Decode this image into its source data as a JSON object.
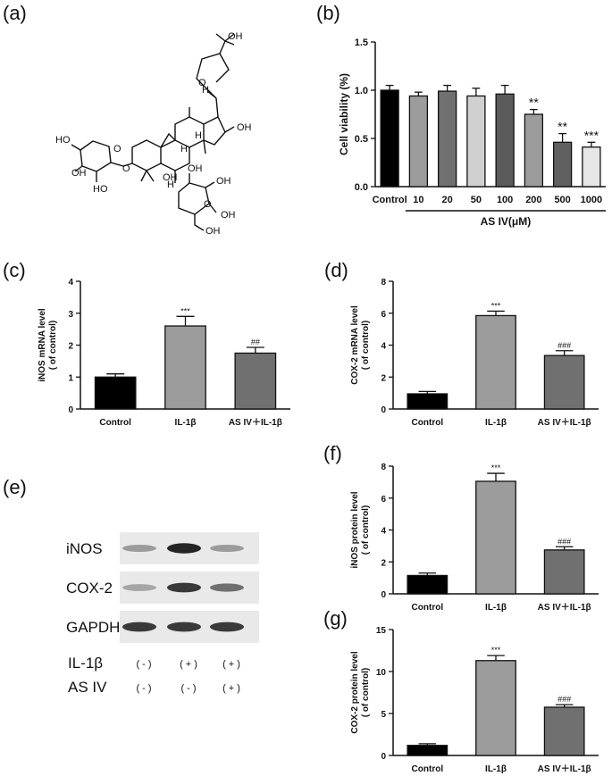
{
  "panel_labels": {
    "a": "(a)",
    "b": "(b)",
    "c": "(c)",
    "d": "(d)",
    "e": "(e)",
    "f": "(f)",
    "g": "(g)"
  },
  "structure": {
    "labels": [
      "OH",
      "H",
      "OH",
      "H",
      "H",
      "OH",
      "HO",
      "O",
      "OH",
      "HO",
      "O",
      "O",
      "OH",
      "H",
      "OH",
      "OH",
      "O",
      "OH"
    ]
  },
  "blot": {
    "proteins": [
      "iNOS",
      "COX-2",
      "GAPDH"
    ],
    "treatments": [
      {
        "name": "IL-1β",
        "states": [
          "( - )",
          "( + )",
          "( + )"
        ]
      },
      {
        "name": "AS IV",
        "states": [
          "( - )",
          "( - )",
          "( + )"
        ]
      }
    ],
    "band_intensity": {
      "iNOS": [
        0.35,
        0.9,
        0.35
      ],
      "COX-2": [
        0.3,
        0.8,
        0.55
      ],
      "GAPDH": [
        0.8,
        0.8,
        0.8
      ]
    }
  },
  "chart_data": [
    {
      "panel": "b",
      "type": "bar",
      "categories": [
        "Control",
        "10",
        "20",
        "50",
        "100",
        "200",
        "500",
        "1000"
      ],
      "values": [
        1.0,
        0.94,
        0.99,
        0.94,
        0.96,
        0.75,
        0.46,
        0.41
      ],
      "errors": [
        0.05,
        0.04,
        0.06,
        0.08,
        0.09,
        0.05,
        0.09,
        0.05
      ],
      "annotations": [
        "",
        "",
        "",
        "",
        "",
        "**",
        "**",
        "***"
      ],
      "colors": [
        "#000000",
        "#9c9c9c",
        "#707070",
        "#d0d0d0",
        "#5a5a5a",
        "#9c9c9c",
        "#606060",
        "#e6e6e6"
      ],
      "ylabel": "Cell viability (%)",
      "xlabel": "AS IV(μM)",
      "ylim": [
        0,
        1.5
      ],
      "yticks": [
        "0.0",
        "0.5",
        "1.0",
        "1.5"
      ]
    },
    {
      "panel": "c",
      "type": "bar",
      "categories": [
        "Control",
        "IL-1β",
        "AS IV＋IL-1β"
      ],
      "values": [
        1.0,
        2.6,
        1.75
      ],
      "errors": [
        0.1,
        0.3,
        0.18
      ],
      "annotations": [
        "",
        "***",
        "##"
      ],
      "colors": [
        "#000000",
        "#9c9c9c",
        "#707070"
      ],
      "ylabel": "iNOS mRNA level",
      "ylabel2": "( of control)",
      "ylim": [
        0,
        4
      ],
      "yticks": [
        "0",
        "1",
        "2",
        "3",
        "4"
      ]
    },
    {
      "panel": "d",
      "type": "bar",
      "categories": [
        "Control",
        "IL-1β",
        "AS IV＋IL-1β"
      ],
      "values": [
        0.95,
        5.85,
        3.35
      ],
      "errors": [
        0.15,
        0.28,
        0.3
      ],
      "annotations": [
        "",
        "***",
        "###"
      ],
      "colors": [
        "#000000",
        "#9c9c9c",
        "#707070"
      ],
      "ylabel": "COX-2 mRNA level",
      "ylabel2": "( of control)",
      "ylim": [
        0,
        8
      ],
      "yticks": [
        "0",
        "2",
        "4",
        "6",
        "8"
      ]
    },
    {
      "panel": "f",
      "type": "bar",
      "categories": [
        "Control",
        "IL-1β",
        "AS IV＋IL-1β"
      ],
      "values": [
        1.15,
        7.05,
        2.75
      ],
      "errors": [
        0.15,
        0.5,
        0.2
      ],
      "annotations": [
        "",
        "***",
        "###"
      ],
      "colors": [
        "#000000",
        "#9c9c9c",
        "#707070"
      ],
      "ylabel": "iNOS protein level",
      "ylabel2": "( of control)",
      "ylim": [
        0,
        8
      ],
      "yticks": [
        "0",
        "2",
        "4",
        "6",
        "8"
      ]
    },
    {
      "panel": "g",
      "type": "bar",
      "categories": [
        "Control",
        "IL-1β",
        "AS IV＋IL-1β"
      ],
      "values": [
        1.2,
        11.3,
        5.75
      ],
      "errors": [
        0.2,
        0.6,
        0.3
      ],
      "annotations": [
        "",
        "***",
        "###"
      ],
      "colors": [
        "#000000",
        "#9c9c9c",
        "#707070"
      ],
      "ylabel": "COX-2 protein level",
      "ylabel2": "( of control)",
      "ylim": [
        0,
        15
      ],
      "yticks": [
        "0",
        "5",
        "10",
        "15"
      ]
    }
  ]
}
